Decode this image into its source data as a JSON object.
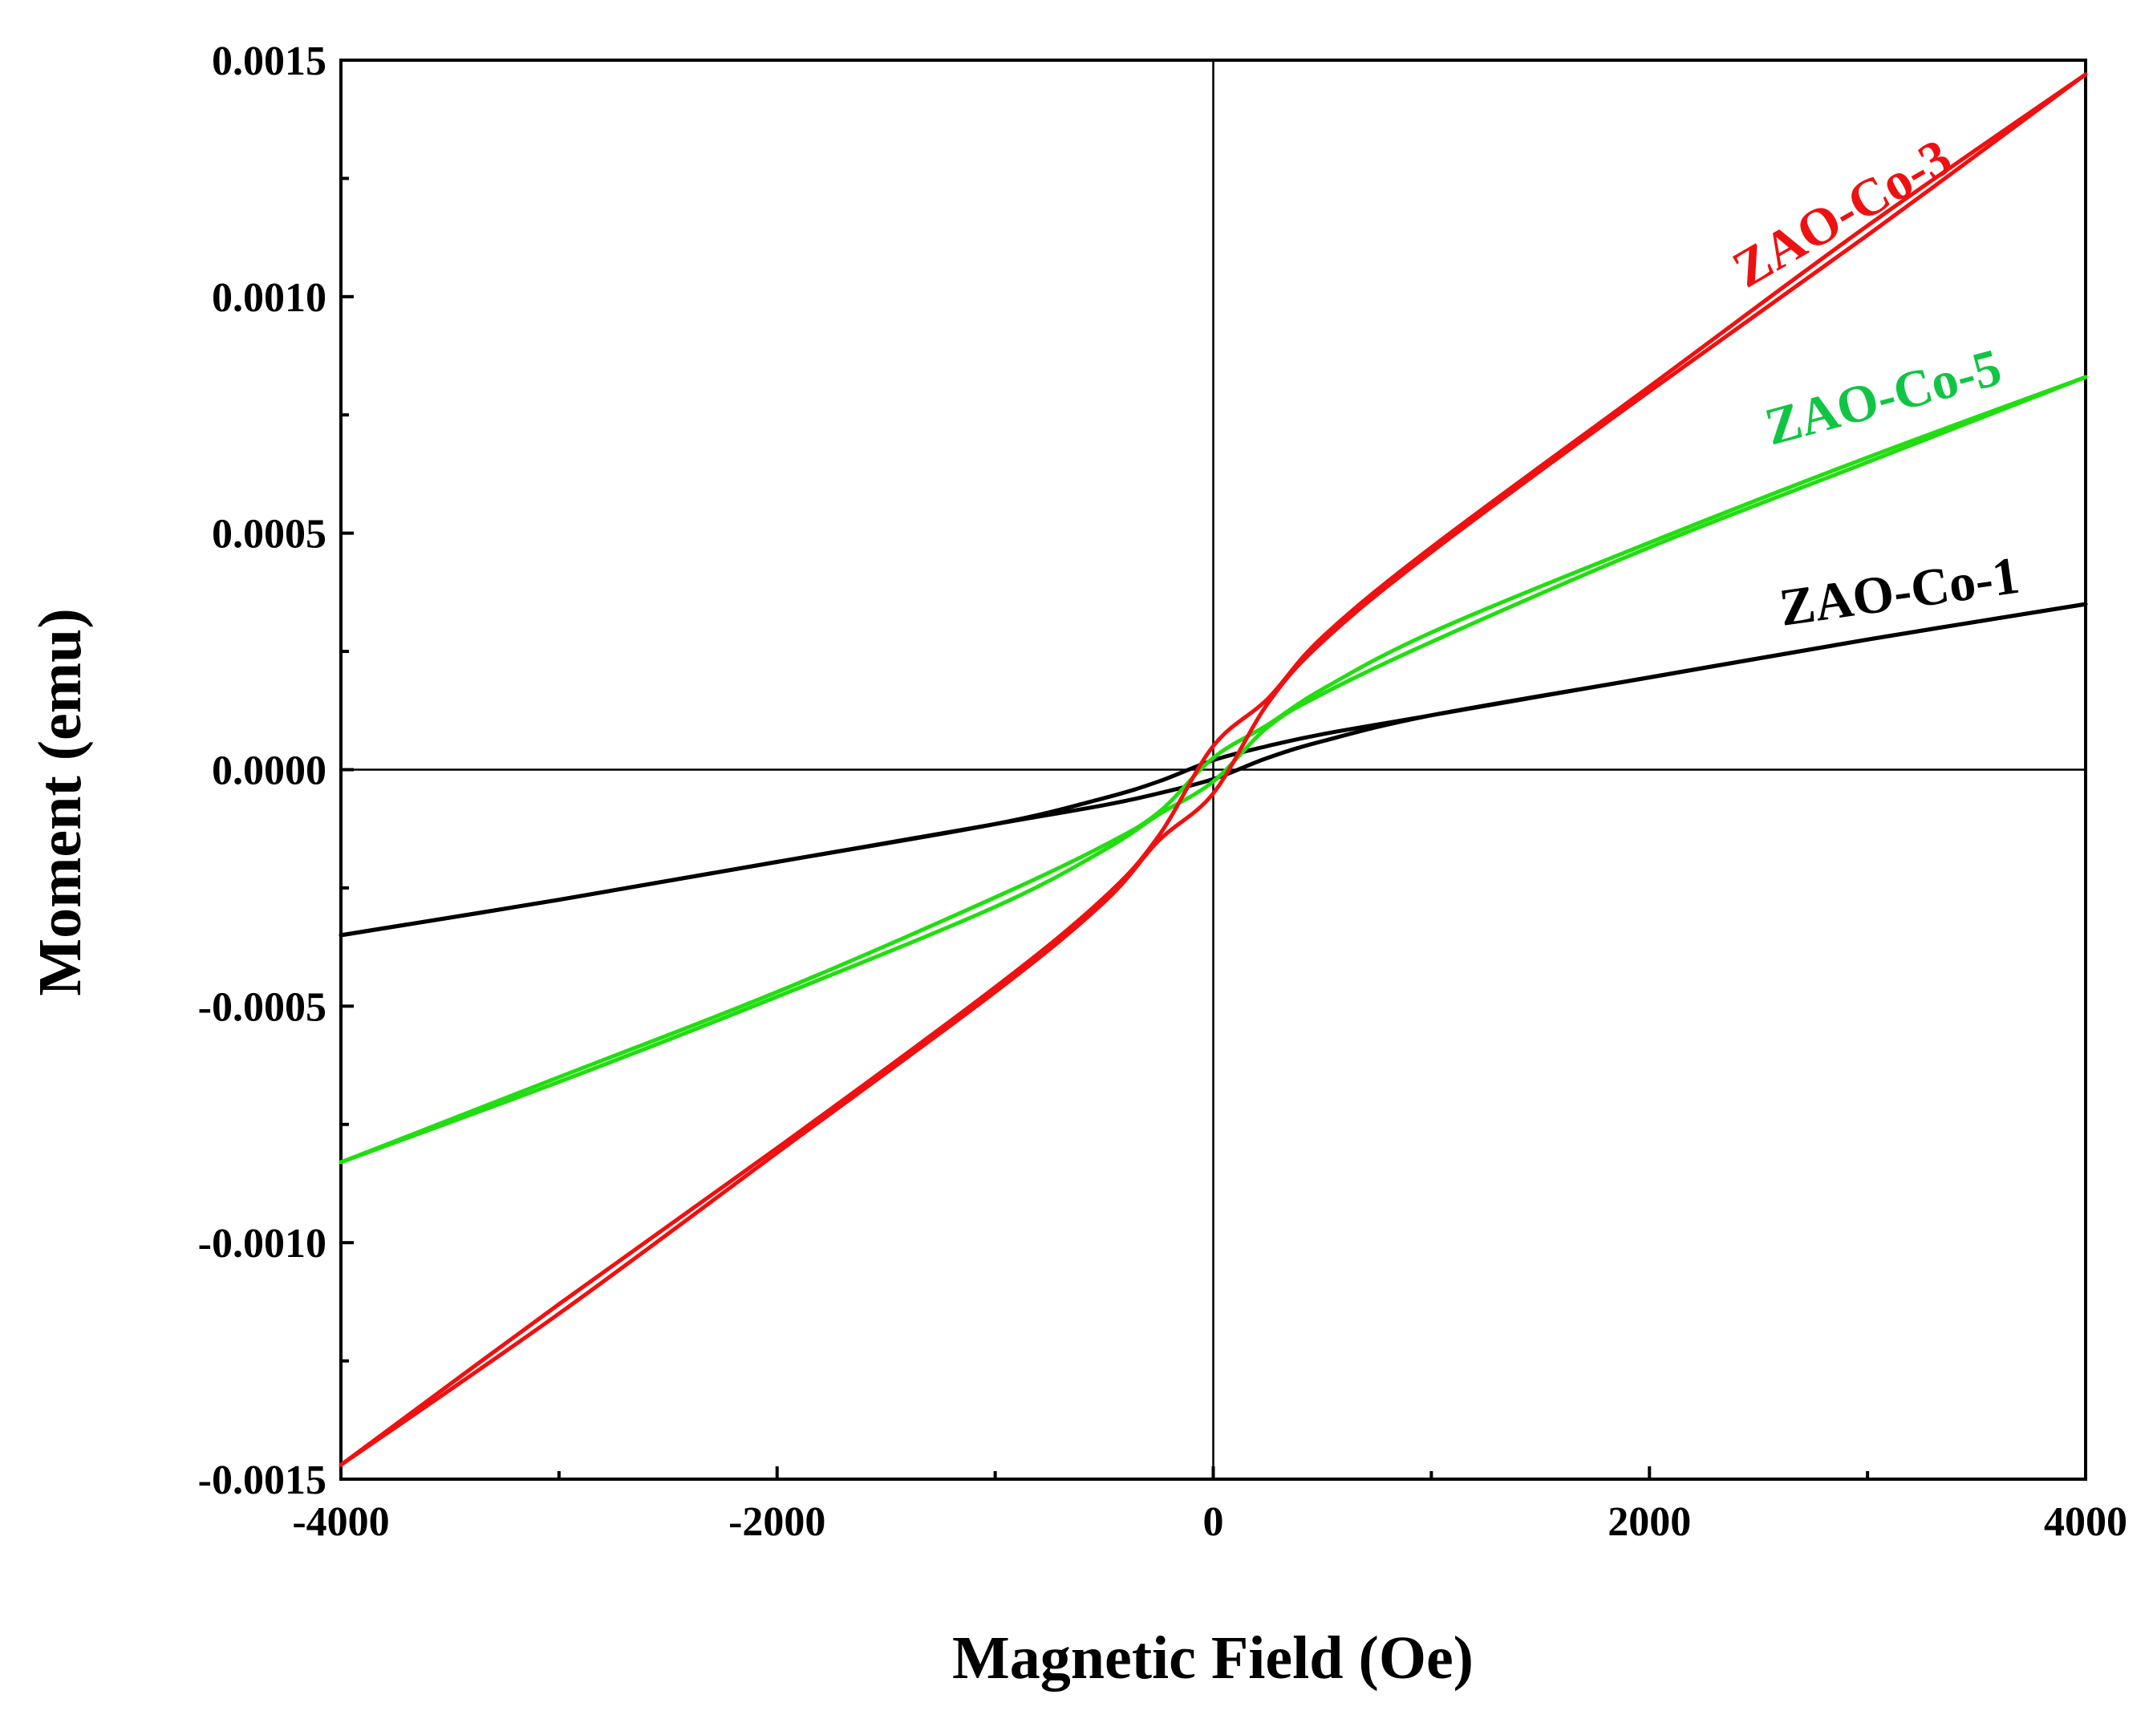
{
  "chart_data": {
    "type": "line",
    "title": "",
    "xlabel": "Magnetic Field (Oe)",
    "ylabel": "Moment (emu)",
    "xlim": [
      -4000,
      4000
    ],
    "ylim": [
      -0.0015,
      0.0015
    ],
    "xticks": [
      -4000,
      -2000,
      0,
      2000,
      4000
    ],
    "xtick_labels": [
      "-4000",
      "-2000",
      "0",
      "2000",
      "4000"
    ],
    "yticks": [
      -0.0015,
      -0.001,
      -0.0005,
      0,
      0.0005,
      0.001,
      0.0015
    ],
    "ytick_labels": [
      "-0.0015",
      "-0.0010",
      "-0.0005",
      "0.0000",
      "0.0005",
      "0.0010",
      "0.0015"
    ],
    "grid": false,
    "series": [
      {
        "name": "ZAO-Co-1",
        "label": "ZAO-Co-1",
        "color": "#000000",
        "branches": [
          {
            "x": [
              -4000,
              -3000,
              -2000,
              -1000,
              -500,
              -250,
              0,
              250,
              500,
              1000,
              2000,
              3000,
              4000
            ],
            "y": [
              -0.00035,
              -0.000275,
              -0.000195,
              -0.000115,
              -6e-05,
              -2.5e-05,
              2e-05,
              5e-05,
              7.5e-05,
              0.000115,
              0.000195,
              0.000275,
              0.00035
            ]
          },
          {
            "x": [
              -4000,
              -3000,
              -2000,
              -1000,
              -500,
              -250,
              0,
              250,
              500,
              1000,
              2000,
              3000,
              4000
            ],
            "y": [
              -0.00035,
              -0.000275,
              -0.000195,
              -0.000115,
              -7.5e-05,
              -5e-05,
              -2e-05,
              2.5e-05,
              6e-05,
              0.000115,
              0.000195,
              0.000275,
              0.00035
            ]
          }
        ]
      },
      {
        "name": "ZAO-Co-5",
        "label": "ZAO-Co-5",
        "color": "#22dd11",
        "label_color": "#11c544",
        "branches": [
          {
            "x": [
              -4000,
              -3000,
              -2000,
              -1000,
              -500,
              -250,
              0,
              250,
              500,
              1000,
              2000,
              3000,
              4000
            ],
            "y": [
              -0.00083,
              -0.00065,
              -0.00047,
              -0.00027,
              -0.00016,
              -9e-05,
              2.5e-05,
              9.5e-05,
              0.00017,
              0.00029,
              0.00048,
              0.00066,
              0.00083
            ]
          },
          {
            "x": [
              -4000,
              -3000,
              -2000,
              -1000,
              -500,
              -250,
              0,
              250,
              500,
              1000,
              2000,
              3000,
              4000
            ],
            "y": [
              -0.00083,
              -0.00066,
              -0.00048,
              -0.00029,
              -0.00017,
              -9.5e-05,
              -2.5e-05,
              9e-05,
              0.00016,
              0.00027,
              0.00047,
              0.00065,
              0.00083
            ]
          }
        ]
      },
      {
        "name": "ZAO-Co-3",
        "label": "ZAO-Co-3",
        "color": "#ee1111",
        "label_color": "#ee1111",
        "branches": [
          {
            "x": [
              -4000,
              -3000,
              -2000,
              -1000,
              -500,
              -250,
              0,
              250,
              500,
              1000,
              2000,
              3000,
              4000
            ],
            "y": [
              -0.00147,
              -0.00113,
              -0.0008,
              -0.00046,
              -0.00027,
              -0.00014,
              5e-05,
              0.00015,
              0.00028,
              0.00047,
              0.00081,
              0.00115,
              0.00147
            ]
          },
          {
            "x": [
              -4000,
              -3000,
              -2000,
              -1000,
              -500,
              -250,
              0,
              250,
              500,
              1000,
              2000,
              3000,
              4000
            ],
            "y": [
              -0.00147,
              -0.00115,
              -0.00081,
              -0.00047,
              -0.00028,
              -0.00015,
              -5e-05,
              0.00014,
              0.00027,
              0.00046,
              0.0008,
              0.00113,
              0.00147
            ]
          }
        ]
      }
    ]
  }
}
